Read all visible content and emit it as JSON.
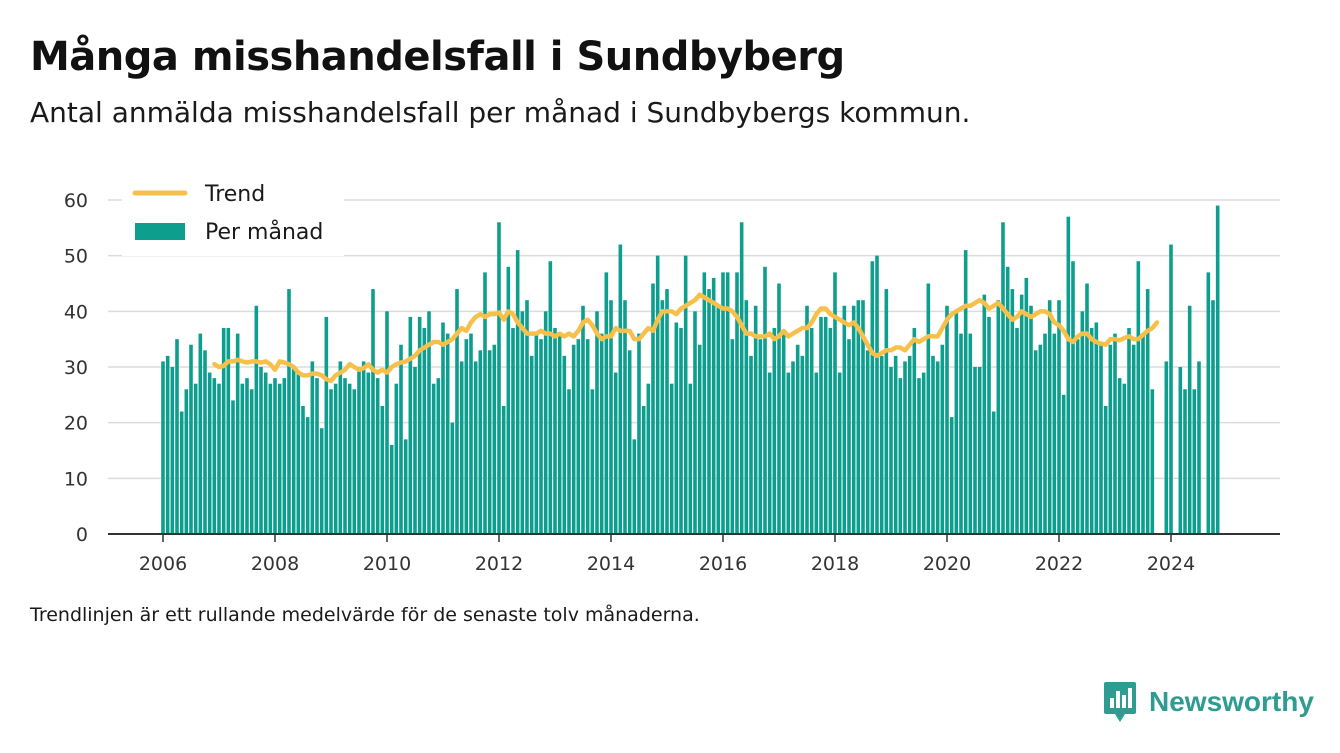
{
  "title": "Många misshandelsfall i Sundbyberg",
  "subtitle": "Antal anmälda misshandelsfall per månad i Sundbybergs kommun.",
  "footnote": "Trendlinjen är ett rullande medelvärde för de senaste tolv månaderna.",
  "brand": {
    "name": "Newsworthy",
    "icon": "newsworthy-logo-icon",
    "color": "#2e9c90"
  },
  "chart_data": {
    "type": "bar",
    "start": "2006-01",
    "x_ticks": [
      "2006",
      "2008",
      "2010",
      "2012",
      "2014",
      "2016",
      "2018",
      "2020",
      "2022",
      "2024"
    ],
    "y_ticks": [
      "0",
      "10",
      "20",
      "30",
      "40",
      "50",
      "60"
    ],
    "ylim": [
      0,
      60
    ],
    "grid": true,
    "legend_position": "top-left",
    "colors": {
      "bars": "#0d9e8e",
      "trend": "#f7c04a"
    },
    "series": [
      {
        "name": "Per månad",
        "type": "bar",
        "values": [
          31,
          32,
          30,
          35,
          22,
          26,
          34,
          27,
          36,
          33,
          29,
          28,
          27,
          37,
          37,
          24,
          36,
          27,
          28,
          26,
          41,
          30,
          29,
          27,
          28,
          27,
          28,
          44,
          30,
          29,
          23,
          21,
          31,
          28,
          19,
          39,
          26,
          27,
          31,
          28,
          27,
          26,
          30,
          31,
          29,
          44,
          28,
          23,
          40,
          16,
          27,
          34,
          17,
          39,
          30,
          39,
          37,
          40,
          27,
          28,
          38,
          36,
          20,
          44,
          31,
          35,
          36,
          31,
          33,
          47,
          33,
          34,
          56,
          23,
          48,
          37,
          51,
          40,
          42,
          32,
          36,
          35,
          40,
          49,
          37,
          36,
          32,
          26,
          34,
          35,
          41,
          35,
          26,
          40,
          36,
          47,
          42,
          29,
          52,
          42,
          33,
          17,
          36,
          23,
          27,
          45,
          50,
          42,
          44,
          27,
          38,
          37,
          50,
          27,
          40,
          34,
          47,
          44,
          46,
          41,
          47,
          47,
          35,
          47,
          56,
          42,
          32,
          41,
          35,
          48,
          29,
          37,
          45,
          36,
          29,
          31,
          34,
          32,
          41,
          37,
          29,
          39,
          39,
          37,
          47,
          29,
          41,
          35,
          41,
          42,
          42,
          33,
          49,
          50,
          32,
          44,
          30,
          32,
          28,
          31,
          32,
          37,
          28,
          29,
          45,
          32,
          31,
          34,
          41,
          21,
          40,
          36,
          51,
          36,
          30,
          30,
          43,
          39,
          22,
          42,
          56,
          48,
          44,
          37,
          43,
          46,
          41,
          33,
          34,
          36,
          42,
          36,
          42,
          25,
          57,
          49,
          35,
          40,
          45,
          37,
          38,
          34,
          23,
          34,
          36,
          28,
          27,
          37,
          34,
          49,
          36,
          44,
          26,
          null,
          null,
          31,
          52,
          null,
          30,
          26,
          41,
          26,
          31,
          null,
          47,
          42,
          59
        ]
      },
      {
        "name": "Trend",
        "type": "line",
        "start": "2006-12",
        "values": [
          30.5,
          30.0,
          30.2,
          31.0,
          31.0,
          31.3,
          31.0,
          30.8,
          31.0,
          31.0,
          30.8,
          31.0,
          30.5,
          29.5,
          31.0,
          30.8,
          30.5,
          30.0,
          29.0,
          28.5,
          28.5,
          28.8,
          28.8,
          28.5,
          27.8,
          27.5,
          28.5,
          29.0,
          29.5,
          30.5,
          30.0,
          29.5,
          29.8,
          30.5,
          29.5,
          29.0,
          29.5,
          29.0,
          30.0,
          30.5,
          30.8,
          31.0,
          31.5,
          32.0,
          33.0,
          33.5,
          34.0,
          34.5,
          34.5,
          34.0,
          34.5,
          35.0,
          36.0,
          37.0,
          36.5,
          38.0,
          39.0,
          39.5,
          39.0,
          39.5,
          39.5,
          39.8,
          38.5,
          40.0,
          39.5,
          38.0,
          37.0,
          36.0,
          36.0,
          36.0,
          36.5,
          36.0,
          36.0,
          35.5,
          36.0,
          35.5,
          36.0,
          35.5,
          36.5,
          38.0,
          38.5,
          37.5,
          36.0,
          35.0,
          35.5,
          35.5,
          37.0,
          36.5,
          36.5,
          36.5,
          35.0,
          35.0,
          36.0,
          37.0,
          36.5,
          38.5,
          40.0,
          40.0,
          40.0,
          39.5,
          40.5,
          41.0,
          41.5,
          42.0,
          43.0,
          42.5,
          42.0,
          41.5,
          41.0,
          40.5,
          40.5,
          40.0,
          39.0,
          37.5,
          36.0,
          36.0,
          35.5,
          35.5,
          35.5,
          36.0,
          35.0,
          35.5,
          36.5,
          35.5,
          36.0,
          36.5,
          37.0,
          37.0,
          38.0,
          39.5,
          40.5,
          40.5,
          39.5,
          39.0,
          38.5,
          38.0,
          37.5,
          38.0,
          37.0,
          35.5,
          34.0,
          32.5,
          32.0,
          32.5,
          33.0,
          33.0,
          33.5,
          33.5,
          33.0,
          34.0,
          35.0,
          34.5,
          35.0,
          35.5,
          35.5,
          35.5,
          37.0,
          38.5,
          39.5,
          40.0,
          40.5,
          41.0,
          41.0,
          41.5,
          42.0,
          41.5,
          40.5,
          41.0,
          41.5,
          40.5,
          39.5,
          38.5,
          39.0,
          40.0,
          39.5,
          39.0,
          39.5,
          40.0,
          40.0,
          39.5,
          38.0,
          37.5,
          36.5,
          35.0,
          34.5,
          35.5,
          36.0,
          36.0,
          35.0,
          34.5,
          34.2,
          34.0,
          35.0,
          35.0,
          34.8,
          35.2,
          35.5,
          35.0,
          35.0,
          35.8,
          36.5,
          37.0,
          38.0
        ]
      }
    ]
  }
}
